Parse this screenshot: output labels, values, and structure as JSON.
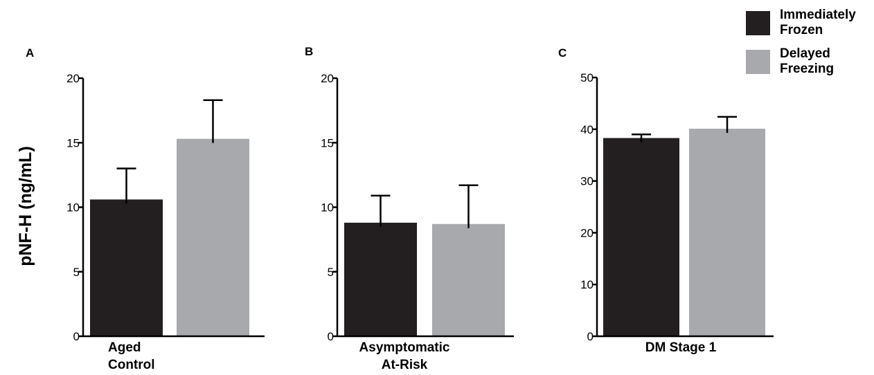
{
  "ylabel": "pNF-H (ng/mL)",
  "legend": [
    {
      "lines": [
        "Immediately",
        "Frozen"
      ],
      "color": "#231f20"
    },
    {
      "lines": [
        "Delayed",
        "Freezing"
      ],
      "color": "#a7a9ac"
    }
  ],
  "chart_data": [
    {
      "type": "bar",
      "panel": "A",
      "category_lines": [
        "Aged",
        "Control"
      ],
      "ylim": [
        0,
        20
      ],
      "yticks": [
        0,
        5,
        10,
        15,
        20
      ],
      "series": [
        {
          "name": "Immediately Frozen",
          "value": 10.6,
          "error": 2.4,
          "color": "#231f20"
        },
        {
          "name": "Delayed Freezing",
          "value": 15.3,
          "error": 3.0,
          "color": "#a7a9ac"
        }
      ]
    },
    {
      "type": "bar",
      "panel": "B",
      "category_lines": [
        "Asymptomatic",
        "At-Risk"
      ],
      "ylim": [
        0,
        20
      ],
      "yticks": [
        0,
        5,
        10,
        15,
        20
      ],
      "series": [
        {
          "name": "Immediately Frozen",
          "value": 8.8,
          "error": 2.1,
          "color": "#231f20"
        },
        {
          "name": "Delayed Freezing",
          "value": 8.7,
          "error": 3.0,
          "color": "#a7a9ac"
        }
      ]
    },
    {
      "type": "bar",
      "panel": "C",
      "category_lines": [
        "DM Stage 1"
      ],
      "ylim": [
        0,
        50
      ],
      "yticks": [
        0,
        10,
        20,
        30,
        40,
        50
      ],
      "series": [
        {
          "name": "Immediately Frozen",
          "value": 38.3,
          "error": 0.7,
          "color": "#231f20"
        },
        {
          "name": "Delayed Freezing",
          "value": 40.1,
          "error": 2.3,
          "color": "#a7a9ac"
        }
      ]
    }
  ]
}
